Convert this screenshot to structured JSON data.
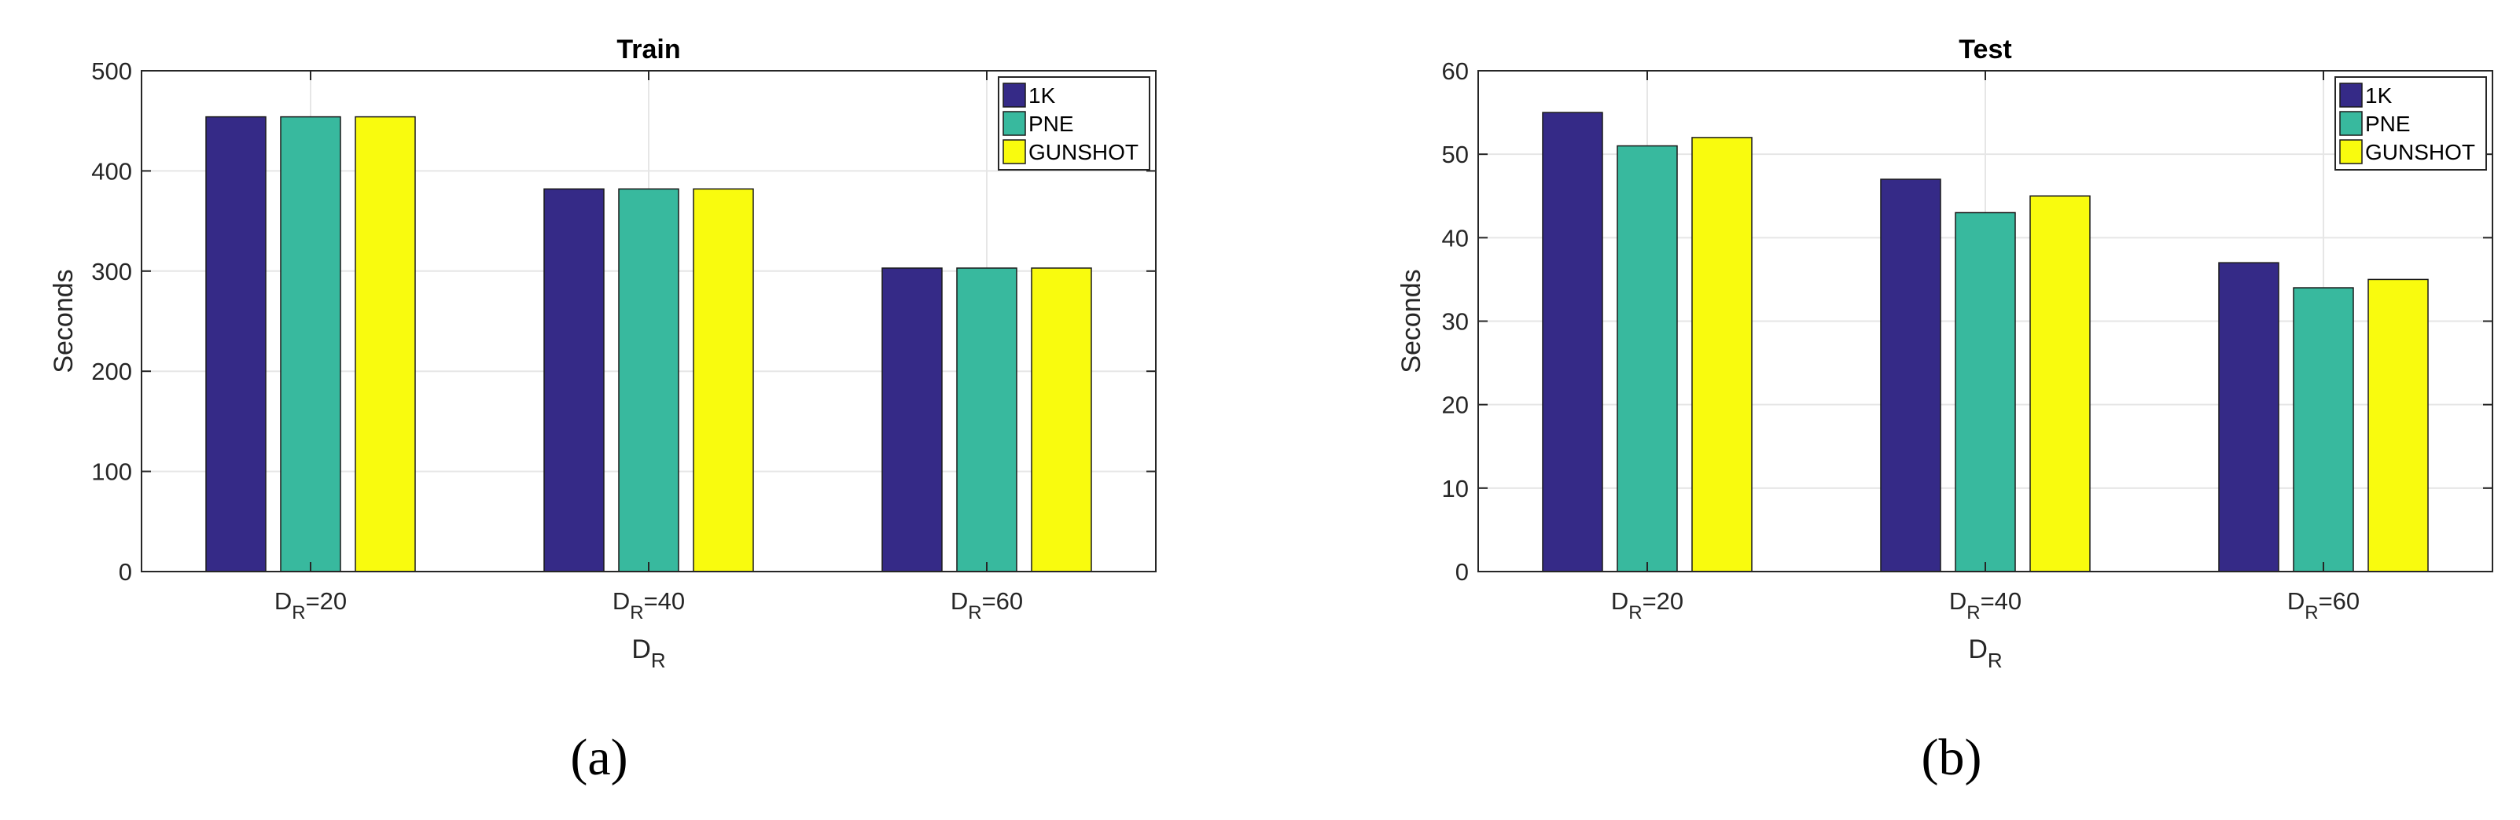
{
  "chart_data": [
    {
      "type": "bar",
      "title": "Train",
      "xlabel": "D",
      "xlabel_sub": "R",
      "ylabel": "Seconds",
      "categories": [
        {
          "base": "D",
          "sub": "R",
          "suffix": "=20"
        },
        {
          "base": "D",
          "sub": "R",
          "suffix": "=40"
        },
        {
          "base": "D",
          "sub": "R",
          "suffix": "=60"
        }
      ],
      "series": [
        {
          "name": "1K",
          "values": [
            454,
            382,
            303
          ]
        },
        {
          "name": "PNE",
          "values": [
            454,
            382,
            303
          ]
        },
        {
          "name": "GUNSHOT",
          "values": [
            454,
            382,
            303
          ]
        }
      ],
      "ylim": [
        0,
        500
      ],
      "yticks": [
        0,
        100,
        200,
        300,
        400,
        500
      ],
      "grid": true,
      "legend": "top-right",
      "caption": "(a)"
    },
    {
      "type": "bar",
      "title": "Test",
      "xlabel": "D",
      "xlabel_sub": "R",
      "ylabel": "Seconds",
      "categories": [
        {
          "base": "D",
          "sub": "R",
          "suffix": "=20"
        },
        {
          "base": "D",
          "sub": "R",
          "suffix": "=40"
        },
        {
          "base": "D",
          "sub": "R",
          "suffix": "=60"
        }
      ],
      "series": [
        {
          "name": "1K",
          "values": [
            55,
            47,
            37
          ]
        },
        {
          "name": "PNE",
          "values": [
            51,
            43,
            34
          ]
        },
        {
          "name": "GUNSHOT",
          "values": [
            52,
            45,
            35
          ]
        }
      ],
      "ylim": [
        0,
        60
      ],
      "yticks": [
        0,
        10,
        20,
        30,
        40,
        50,
        60
      ],
      "grid": true,
      "legend": "top-right",
      "caption": "(b)"
    }
  ],
  "colors": {
    "series": [
      "#352a87",
      "#38b99e",
      "#f9fb0e"
    ],
    "grid": "#e6e6e6",
    "axis": "#262626"
  }
}
